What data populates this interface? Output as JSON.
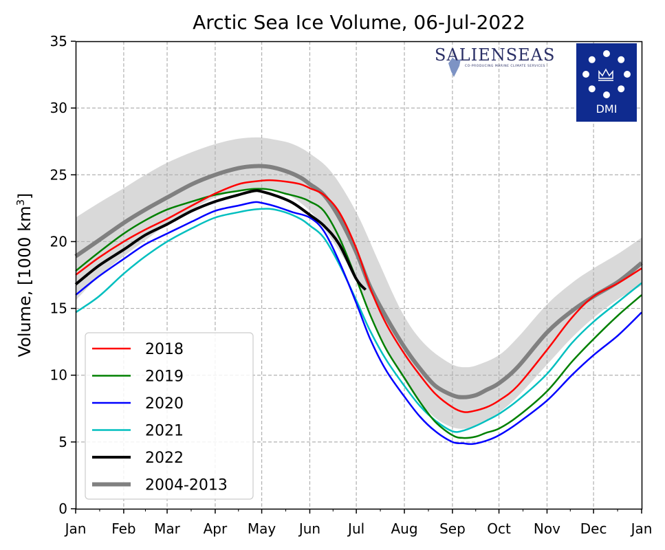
{
  "chart_data": {
    "type": "line",
    "title": "Arctic Sea Ice Volume, 06-Jul-2022",
    "xlabel": "",
    "ylabel_prefix": "Volume, [1000 km",
    "ylabel_sup": "3",
    "ylabel_suffix": "]",
    "ylim": [
      0,
      35
    ],
    "xlim": [
      0,
      365
    ],
    "yticks": [
      0,
      5,
      10,
      15,
      20,
      25,
      30,
      35
    ],
    "xticks": [
      {
        "label": "Jan",
        "day": 0
      },
      {
        "label": "Feb",
        "day": 31
      },
      {
        "label": "Mar",
        "day": 59
      },
      {
        "label": "Apr",
        "day": 90
      },
      {
        "label": "May",
        "day": 120
      },
      {
        "label": "Jun",
        "day": 151
      },
      {
        "label": "Jul",
        "day": 181
      },
      {
        "label": "Aug",
        "day": 212
      },
      {
        "label": "Sep",
        "day": 243
      },
      {
        "label": "Oct",
        "day": 273
      },
      {
        "label": "Nov",
        "day": 304
      },
      {
        "label": "Dec",
        "day": 334
      },
      {
        "label": "Jan",
        "day": 365
      }
    ],
    "grid": true,
    "legend_position": "lower-left",
    "band": {
      "name": "2004-2013 range",
      "color": "#d9d9d9",
      "upper": [
        [
          0,
          21.8
        ],
        [
          15,
          22.9
        ],
        [
          31,
          24.0
        ],
        [
          45,
          25.0
        ],
        [
          59,
          25.9
        ],
        [
          75,
          26.7
        ],
        [
          90,
          27.3
        ],
        [
          105,
          27.7
        ],
        [
          118,
          27.8
        ],
        [
          130,
          27.6
        ],
        [
          140,
          27.3
        ],
        [
          151,
          26.6
        ],
        [
          165,
          25.2
        ],
        [
          181,
          22.2
        ],
        [
          195,
          18.6
        ],
        [
          205,
          16.0
        ],
        [
          212,
          14.4
        ],
        [
          220,
          13.0
        ],
        [
          230,
          11.8
        ],
        [
          243,
          10.8
        ],
        [
          252,
          10.6
        ],
        [
          260,
          10.8
        ],
        [
          273,
          11.5
        ],
        [
          285,
          12.8
        ],
        [
          304,
          15.3
        ],
        [
          320,
          16.9
        ],
        [
          334,
          18.0
        ],
        [
          350,
          19.1
        ],
        [
          365,
          20.3
        ]
      ],
      "lower": [
        [
          0,
          15.6
        ],
        [
          15,
          17.4
        ],
        [
          31,
          18.9
        ],
        [
          45,
          20.1
        ],
        [
          59,
          21.3
        ],
        [
          75,
          22.4
        ],
        [
          90,
          23.3
        ],
        [
          105,
          23.8
        ],
        [
          118,
          24.0
        ],
        [
          130,
          23.8
        ],
        [
          140,
          23.3
        ],
        [
          151,
          22.3
        ],
        [
          160,
          21.0
        ],
        [
          170,
          19.3
        ],
        [
          181,
          17.1
        ],
        [
          190,
          14.5
        ],
        [
          200,
          12.0
        ],
        [
          212,
          9.6
        ],
        [
          222,
          8.0
        ],
        [
          232,
          6.8
        ],
        [
          243,
          6.1
        ],
        [
          252,
          6.0
        ],
        [
          260,
          6.3
        ],
        [
          273,
          7.2
        ],
        [
          285,
          8.4
        ],
        [
          304,
          10.8
        ],
        [
          320,
          12.8
        ],
        [
          334,
          14.3
        ],
        [
          350,
          15.7
        ],
        [
          365,
          16.7
        ]
      ]
    },
    "series": [
      {
        "name": "2018",
        "color": "#ff0000",
        "width": 2.5,
        "points": [
          [
            0,
            17.5
          ],
          [
            15,
            18.8
          ],
          [
            31,
            20.0
          ],
          [
            45,
            20.9
          ],
          [
            59,
            21.7
          ],
          [
            75,
            22.7
          ],
          [
            90,
            23.6
          ],
          [
            105,
            24.3
          ],
          [
            115,
            24.5
          ],
          [
            125,
            24.6
          ],
          [
            135,
            24.5
          ],
          [
            145,
            24.3
          ],
          [
            151,
            24.0
          ],
          [
            160,
            23.5
          ],
          [
            170,
            22.2
          ],
          [
            181,
            19.5
          ],
          [
            190,
            16.5
          ],
          [
            200,
            13.9
          ],
          [
            212,
            11.6
          ],
          [
            222,
            10.0
          ],
          [
            232,
            8.6
          ],
          [
            243,
            7.6
          ],
          [
            250,
            7.25
          ],
          [
            256,
            7.3
          ],
          [
            265,
            7.6
          ],
          [
            273,
            8.1
          ],
          [
            285,
            9.2
          ],
          [
            304,
            11.9
          ],
          [
            320,
            14.3
          ],
          [
            334,
            15.9
          ],
          [
            350,
            16.9
          ],
          [
            365,
            18.0
          ]
        ]
      },
      {
        "name": "2019",
        "color": "#008000",
        "width": 2.5,
        "points": [
          [
            0,
            17.8
          ],
          [
            15,
            19.2
          ],
          [
            31,
            20.6
          ],
          [
            45,
            21.6
          ],
          [
            59,
            22.4
          ],
          [
            75,
            23.0
          ],
          [
            90,
            23.5
          ],
          [
            105,
            23.8
          ],
          [
            115,
            23.95
          ],
          [
            125,
            23.9
          ],
          [
            135,
            23.6
          ],
          [
            145,
            23.3
          ],
          [
            151,
            23.0
          ],
          [
            160,
            22.3
          ],
          [
            170,
            20.3
          ],
          [
            181,
            17.2
          ],
          [
            190,
            14.5
          ],
          [
            200,
            12.0
          ],
          [
            212,
            9.8
          ],
          [
            222,
            8.0
          ],
          [
            232,
            6.5
          ],
          [
            243,
            5.5
          ],
          [
            250,
            5.3
          ],
          [
            258,
            5.4
          ],
          [
            265,
            5.7
          ],
          [
            273,
            6.0
          ],
          [
            285,
            6.9
          ],
          [
            304,
            8.8
          ],
          [
            320,
            11.0
          ],
          [
            334,
            12.7
          ],
          [
            350,
            14.5
          ],
          [
            365,
            16.0
          ]
        ]
      },
      {
        "name": "2020",
        "color": "#0000ff",
        "width": 2.5,
        "points": [
          [
            0,
            16.0
          ],
          [
            15,
            17.4
          ],
          [
            31,
            18.7
          ],
          [
            45,
            19.8
          ],
          [
            59,
            20.6
          ],
          [
            75,
            21.5
          ],
          [
            90,
            22.3
          ],
          [
            105,
            22.7
          ],
          [
            115,
            22.95
          ],
          [
            120,
            22.9
          ],
          [
            130,
            22.6
          ],
          [
            140,
            22.2
          ],
          [
            151,
            21.8
          ],
          [
            160,
            20.8
          ],
          [
            170,
            18.5
          ],
          [
            181,
            15.4
          ],
          [
            190,
            12.7
          ],
          [
            200,
            10.4
          ],
          [
            212,
            8.4
          ],
          [
            222,
            6.9
          ],
          [
            232,
            5.8
          ],
          [
            243,
            5.0
          ],
          [
            250,
            4.9
          ],
          [
            256,
            4.85
          ],
          [
            265,
            5.1
          ],
          [
            273,
            5.5
          ],
          [
            285,
            6.4
          ],
          [
            304,
            8.1
          ],
          [
            320,
            10.0
          ],
          [
            334,
            11.5
          ],
          [
            350,
            13.0
          ],
          [
            365,
            14.7
          ]
        ]
      },
      {
        "name": "2021",
        "color": "#00bfbf",
        "width": 2.5,
        "points": [
          [
            0,
            14.7
          ],
          [
            15,
            15.9
          ],
          [
            31,
            17.6
          ],
          [
            45,
            18.9
          ],
          [
            59,
            20.0
          ],
          [
            75,
            21.0
          ],
          [
            90,
            21.8
          ],
          [
            105,
            22.2
          ],
          [
            115,
            22.4
          ],
          [
            125,
            22.45
          ],
          [
            135,
            22.2
          ],
          [
            145,
            21.7
          ],
          [
            151,
            21.2
          ],
          [
            160,
            20.3
          ],
          [
            170,
            18.3
          ],
          [
            181,
            15.6
          ],
          [
            190,
            13.3
          ],
          [
            200,
            11.2
          ],
          [
            212,
            9.2
          ],
          [
            222,
            7.7
          ],
          [
            232,
            6.6
          ],
          [
            243,
            5.8
          ],
          [
            250,
            5.85
          ],
          [
            258,
            6.2
          ],
          [
            265,
            6.6
          ],
          [
            273,
            7.1
          ],
          [
            285,
            8.1
          ],
          [
            304,
            10.1
          ],
          [
            320,
            12.4
          ],
          [
            334,
            14.0
          ],
          [
            350,
            15.5
          ],
          [
            365,
            16.9
          ]
        ]
      },
      {
        "name": "2022",
        "color": "#000000",
        "width": 4,
        "points": [
          [
            0,
            16.8
          ],
          [
            15,
            18.2
          ],
          [
            31,
            19.4
          ],
          [
            45,
            20.5
          ],
          [
            59,
            21.3
          ],
          [
            75,
            22.3
          ],
          [
            90,
            23.0
          ],
          [
            105,
            23.5
          ],
          [
            115,
            23.8
          ],
          [
            120,
            23.75
          ],
          [
            130,
            23.4
          ],
          [
            140,
            22.9
          ],
          [
            151,
            22.0
          ],
          [
            160,
            21.2
          ],
          [
            170,
            19.8
          ],
          [
            181,
            17.2
          ],
          [
            187,
            16.4
          ]
        ]
      },
      {
        "name": "2004-2013",
        "color": "#808080",
        "width": 6,
        "points": [
          [
            0,
            18.9
          ],
          [
            15,
            20.1
          ],
          [
            31,
            21.4
          ],
          [
            45,
            22.4
          ],
          [
            59,
            23.3
          ],
          [
            75,
            24.3
          ],
          [
            90,
            25.0
          ],
          [
            105,
            25.5
          ],
          [
            115,
            25.65
          ],
          [
            125,
            25.6
          ],
          [
            135,
            25.3
          ],
          [
            145,
            24.8
          ],
          [
            151,
            24.3
          ],
          [
            160,
            23.5
          ],
          [
            170,
            21.8
          ],
          [
            181,
            19.2
          ],
          [
            190,
            16.6
          ],
          [
            200,
            14.4
          ],
          [
            212,
            12.1
          ],
          [
            222,
            10.5
          ],
          [
            232,
            9.2
          ],
          [
            243,
            8.5
          ],
          [
            250,
            8.35
          ],
          [
            258,
            8.5
          ],
          [
            265,
            8.9
          ],
          [
            273,
            9.4
          ],
          [
            285,
            10.6
          ],
          [
            304,
            13.2
          ],
          [
            320,
            14.8
          ],
          [
            334,
            15.9
          ],
          [
            350,
            17.0
          ],
          [
            365,
            18.4
          ]
        ]
      }
    ],
    "legend": [
      "2018",
      "2019",
      "2020",
      "2021",
      "2022",
      "2004-2013"
    ]
  },
  "logos": {
    "salienseas": "SALIENSEAS",
    "salienseas_tagline": "CO-PRODUCING MARINE CLIMATE SERVICES",
    "dmi": "DMI",
    "dmi_color": "#0f2b8f"
  }
}
